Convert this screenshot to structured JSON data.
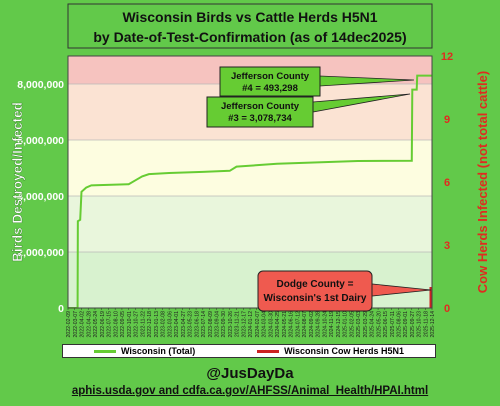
{
  "chart_data": {
    "type": "line",
    "title_line1": "Wisconsin Birds vs Cattle Herds H5N1",
    "title_line2": "by Date-of-Test-Confirmation (as of 14dec2025)",
    "ylabel_left": "Birds Destroyed/Infected",
    "ylabel_right": "Cow Herds Infected (not total cattle)",
    "y_left_range": [
      0,
      9000000
    ],
    "y_left_ticks": [
      "0",
      "2,000,000",
      "4,000,000",
      "6,000,000",
      "8,000,000"
    ],
    "y_right_range": [
      0,
      12
    ],
    "y_right_ticks": [
      "0",
      "3",
      "6",
      "9",
      "12"
    ],
    "x_range": [
      "2022-02-09",
      "2025-12-14"
    ],
    "x_tick_labels": [
      "2022-02-09",
      "2022-03-07",
      "2022-04-02",
      "2022-04-28",
      "2022-05-24",
      "2022-06-19",
      "2022-07-15",
      "2022-08-10",
      "2022-09-05",
      "2022-10-01",
      "2022-10-27",
      "2022-11-22",
      "2022-12-18",
      "2023-01-13",
      "2023-02-08",
      "2023-03-06",
      "2023-04-01",
      "2023-04-27",
      "2023-05-23",
      "2023-06-18",
      "2023-07-14",
      "2023-08-09",
      "2023-09-04",
      "2023-09-30",
      "2023-10-26",
      "2023-11-21",
      "2023-12-17",
      "2024-01-12",
      "2024-02-07",
      "2024-03-04",
      "2024-03-30",
      "2024-04-25",
      "2024-05-21",
      "2024-06-16",
      "2024-07-12",
      "2024-08-07",
      "2024-09-02",
      "2024-09-28",
      "2024-10-24",
      "2024-11-19",
      "2024-12-15",
      "2025-01-10",
      "2025-02-05",
      "2025-03-03",
      "2025-03-29",
      "2025-04-24",
      "2025-05-20",
      "2025-06-15",
      "2025-07-11",
      "2025-08-06",
      "2025-09-01",
      "2025-09-27",
      "2025-10-23",
      "2025-11-18",
      "2025-12-14"
    ],
    "grid": true,
    "legend_placement": "bottom",
    "series": [
      {
        "name": "Wisconsin (Total)",
        "color": "#66cc33",
        "points": [
          {
            "x": "2022-02-09",
            "y": 0
          },
          {
            "x": "2022-03-18",
            "y": 0
          },
          {
            "x": "2022-03-19",
            "y": 3100000
          },
          {
            "x": "2022-03-28",
            "y": 3150000
          },
          {
            "x": "2022-04-02",
            "y": 4150000
          },
          {
            "x": "2022-04-20",
            "y": 4300000
          },
          {
            "x": "2022-05-10",
            "y": 4380000
          },
          {
            "x": "2022-10-01",
            "y": 4420000
          },
          {
            "x": "2022-10-27",
            "y": 4560000
          },
          {
            "x": "2022-11-22",
            "y": 4700000
          },
          {
            "x": "2022-12-18",
            "y": 4780000
          },
          {
            "x": "2023-03-06",
            "y": 4820000
          },
          {
            "x": "2023-07-14",
            "y": 4860000
          },
          {
            "x": "2023-10-26",
            "y": 4900000
          },
          {
            "x": "2023-11-21",
            "y": 5050000
          },
          {
            "x": "2024-04-25",
            "y": 5150000
          },
          {
            "x": "2025-03-03",
            "y": 5250000
          },
          {
            "x": "2025-09-27",
            "y": 5260000
          },
          {
            "x": "2025-09-29",
            "y": 7800000
          },
          {
            "x": "2025-10-16",
            "y": 7800000
          },
          {
            "x": "2025-10-18",
            "y": 8300000
          },
          {
            "x": "2025-12-14",
            "y": 8300000
          }
        ]
      },
      {
        "name": "Wisconsin Cow Herds H5N1",
        "color": "#cc2222",
        "axis": "right",
        "points": [
          {
            "x": "2025-12-14",
            "y": 1
          }
        ]
      }
    ],
    "bands": [
      {
        "from": 0,
        "to": 2000000,
        "color": "#d8f2cf"
      },
      {
        "from": 2000000,
        "to": 4000000,
        "color": "#e9f6dc"
      },
      {
        "from": 4000000,
        "to": 6000000,
        "color": "#fdfde0"
      },
      {
        "from": 6000000,
        "to": 8000000,
        "color": "#fbe3d3"
      },
      {
        "from": 8000000,
        "to": 9000000,
        "color": "#f6c3bf"
      }
    ],
    "annotations": [
      {
        "id": "jefferson-4",
        "lines": [
          "Jefferson County",
          "#4 = 493,298"
        ],
        "color": "#66cc33"
      },
      {
        "id": "jefferson-3",
        "lines": [
          "Jefferson County",
          "#3 = 3,078,734"
        ],
        "color": "#66cc33"
      },
      {
        "id": "dodge",
        "lines": [
          "Dodge County =",
          "Wisconsin's 1st Dairy"
        ],
        "color": "#ef5a4f"
      }
    ]
  },
  "footer": {
    "handle": "@JusDayDa",
    "sources": "aphis.usda.gov and cdfa.ca.gov/AHFSS/Animal_Health/HPAI.html"
  }
}
